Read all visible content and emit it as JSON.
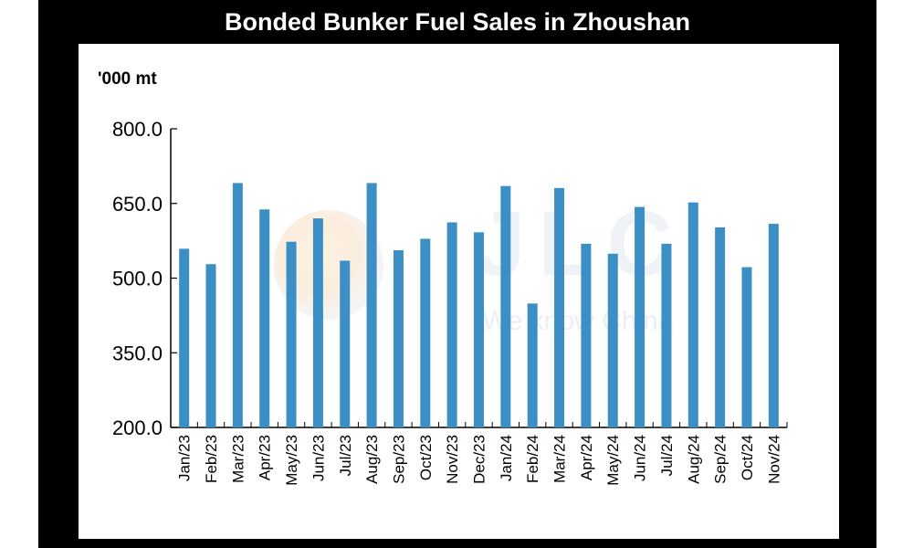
{
  "chart_data": {
    "type": "bar",
    "title": "Bonded Bunker Fuel Sales in Zhoushan",
    "ylabel": "'000 mt",
    "xlabel": "",
    "categories": [
      "Jan/23",
      "Feb/23",
      "Mar/23",
      "Apr/23",
      "May/23",
      "Jun/23",
      "Jul/23",
      "Aug/23",
      "Sep/23",
      "Oct/23",
      "Nov/23",
      "Dec/23",
      "Jan/24",
      "Feb/24",
      "Mar/24",
      "Apr/24",
      "May/24",
      "Jun/24",
      "Jul/24",
      "Aug/24",
      "Sep/24",
      "Oct/24",
      "Nov/24"
    ],
    "values": [
      559,
      528,
      691,
      638,
      573,
      620,
      535,
      691,
      556,
      579,
      612,
      592,
      685,
      449,
      681,
      569,
      549,
      643,
      569,
      652,
      602,
      522,
      609
    ],
    "ylim": [
      200,
      800
    ],
    "yticks": [
      "200.0",
      "350.0",
      "500.0",
      "650.0",
      "800.0"
    ],
    "ytick_values": [
      200,
      350,
      500,
      650,
      800
    ],
    "grid": false,
    "legend": "none",
    "bar_color": "#3b8fc4"
  },
  "watermark": {
    "main": "JLC",
    "sub": "We know China"
  }
}
